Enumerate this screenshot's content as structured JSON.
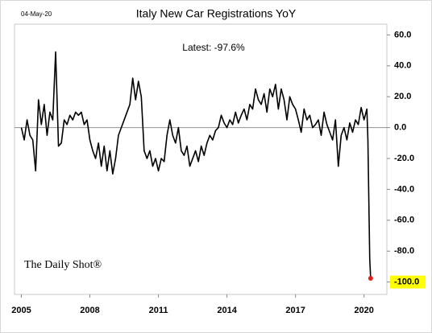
{
  "chart_data": {
    "type": "line",
    "title": "Italy New Car Registrations YoY",
    "date_stamp": "04-May-20",
    "annotation": "Latest:  -97.6%",
    "source": "The Daily Shot®",
    "x": [
      2005,
      2005.125,
      2005.25,
      2005.375,
      2005.5,
      2005.625,
      2005.75,
      2005.875,
      2006,
      2006.125,
      2006.25,
      2006.375,
      2006.5,
      2006.625,
      2006.75,
      2006.875,
      2007,
      2007.125,
      2007.25,
      2007.375,
      2007.5,
      2007.625,
      2007.75,
      2007.875,
      2008,
      2008.125,
      2008.25,
      2008.375,
      2008.5,
      2008.625,
      2008.75,
      2008.875,
      2009,
      2009.125,
      2009.25,
      2009.375,
      2009.5,
      2009.625,
      2009.75,
      2009.875,
      2010,
      2010.125,
      2010.25,
      2010.375,
      2010.5,
      2010.625,
      2010.75,
      2010.875,
      2011,
      2011.125,
      2011.25,
      2011.375,
      2011.5,
      2011.625,
      2011.75,
      2011.875,
      2012,
      2012.125,
      2012.25,
      2012.375,
      2012.5,
      2012.625,
      2012.75,
      2012.875,
      2013,
      2013.125,
      2013.25,
      2013.375,
      2013.5,
      2013.625,
      2013.75,
      2013.875,
      2014,
      2014.125,
      2014.25,
      2014.375,
      2014.5,
      2014.625,
      2014.75,
      2014.875,
      2015,
      2015.125,
      2015.25,
      2015.375,
      2015.5,
      2015.625,
      2015.75,
      2015.875,
      2016,
      2016.125,
      2016.25,
      2016.375,
      2016.5,
      2016.625,
      2016.75,
      2016.875,
      2017,
      2017.125,
      2017.25,
      2017.375,
      2017.5,
      2017.625,
      2017.75,
      2017.875,
      2018,
      2018.125,
      2018.25,
      2018.375,
      2018.5,
      2018.625,
      2018.75,
      2018.875,
      2019,
      2019.125,
      2019.25,
      2019.375,
      2019.5,
      2019.625,
      2019.75,
      2019.875,
      2020,
      2020.125,
      2020.17,
      2020.25,
      2020.29
    ],
    "series": [
      {
        "color": "#000000",
        "values": [
          0,
          -8,
          5,
          -5,
          -8,
          -28,
          18,
          2,
          15,
          -5,
          10,
          5,
          49,
          -12,
          -10,
          5,
          2,
          8,
          5,
          10,
          8,
          10,
          2,
          5,
          -8,
          -15,
          -20,
          -10,
          -25,
          -12,
          -28,
          -15,
          -30,
          -20,
          -5,
          0,
          5,
          10,
          15,
          32,
          18,
          30,
          20,
          -15,
          -20,
          -15,
          -25,
          -20,
          -28,
          -20,
          -22,
          -5,
          5,
          -5,
          -10,
          0,
          -15,
          -18,
          -12,
          -25,
          -20,
          -15,
          -22,
          -12,
          -18,
          -10,
          -5,
          -8,
          -2,
          0,
          8,
          3,
          0,
          5,
          2,
          10,
          3,
          8,
          12,
          5,
          15,
          12,
          25,
          18,
          15,
          22,
          10,
          25,
          20,
          28,
          12,
          25,
          18,
          5,
          20,
          15,
          12,
          5,
          -3,
          12,
          5,
          8,
          0,
          2,
          5,
          -5,
          10,
          2,
          -3,
          -8,
          5,
          -25,
          -5,
          0,
          -8,
          3,
          -3,
          5,
          2,
          13,
          5,
          12,
          -8,
          -85,
          -97.6
        ]
      }
    ],
    "latest_color": "#e0201b",
    "highlight_color": "#ffff00",
    "hline": 0,
    "xlim": [
      2004.7,
      2021.0
    ],
    "xticks": [
      2005,
      2008,
      2011,
      2014,
      2017,
      2020
    ],
    "ylim": [
      -108,
      67
    ],
    "yticks": [
      {
        "value": 60,
        "label": "60.0"
      },
      {
        "value": 40,
        "label": "40.0"
      },
      {
        "value": 20,
        "label": "20.0"
      },
      {
        "value": 0,
        "label": "0.0"
      },
      {
        "value": -20,
        "label": "-20.0"
      },
      {
        "value": -40,
        "label": "-40.0"
      },
      {
        "value": -60,
        "label": "-60.0"
      },
      {
        "value": -80,
        "label": "-80.0"
      },
      {
        "value": -100,
        "label": "-100.0"
      }
    ],
    "highlight_tick": -100
  }
}
